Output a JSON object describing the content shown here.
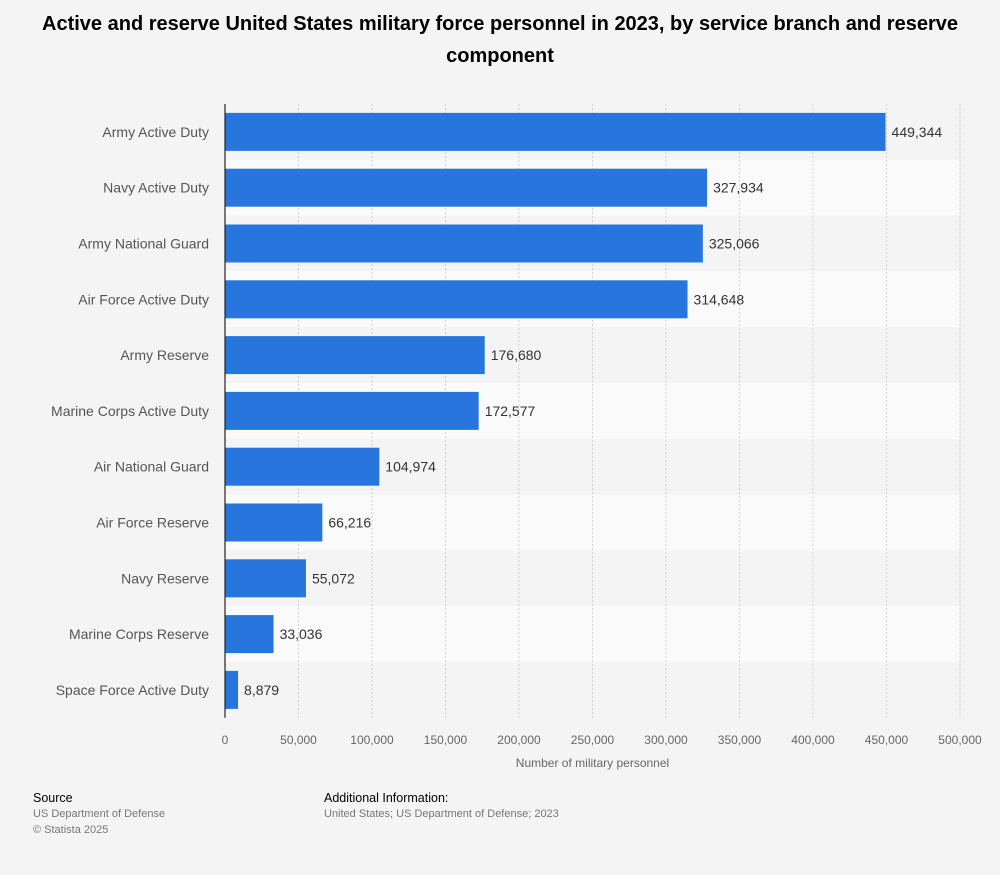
{
  "title": "Active and reserve United States military force personnel in 2023, by service branch and reserve component",
  "chart_data": {
    "type": "bar",
    "orientation": "horizontal",
    "categories": [
      "Army Active Duty",
      "Navy Active Duty",
      "Army National Guard",
      "Air Force Active Duty",
      "Army Reserve",
      "Marine Corps Active Duty",
      "Air National Guard",
      "Air Force Reserve",
      "Navy Reserve",
      "Marine Corps Reserve",
      "Space Force Active Duty"
    ],
    "values": [
      449344,
      327934,
      325066,
      314648,
      176680,
      172577,
      104974,
      66216,
      55072,
      33036,
      8879
    ],
    "value_labels": [
      "449,344",
      "327,934",
      "325,066",
      "314,648",
      "176,680",
      "172,577",
      "104,974",
      "66,216",
      "55,072",
      "33,036",
      "8,879"
    ],
    "xlabel": "Number of military personnel",
    "xlim": [
      0,
      500000
    ],
    "xticks": [
      0,
      50000,
      100000,
      150000,
      200000,
      250000,
      300000,
      350000,
      400000,
      450000,
      500000
    ],
    "xtick_labels": [
      "0",
      "50,000",
      "100,000",
      "150,000",
      "200,000",
      "250,000",
      "300,000",
      "350,000",
      "400,000",
      "450,000",
      "500,000"
    ],
    "grid": true,
    "bar_color": "#2876dd"
  },
  "footer": {
    "source_heading": "Source",
    "source_lines": [
      "US Department of Defense",
      "© Statista 2025"
    ],
    "info_heading": "Additional Information:",
    "info_lines": [
      "United States; US Department of Defense; 2023"
    ]
  }
}
